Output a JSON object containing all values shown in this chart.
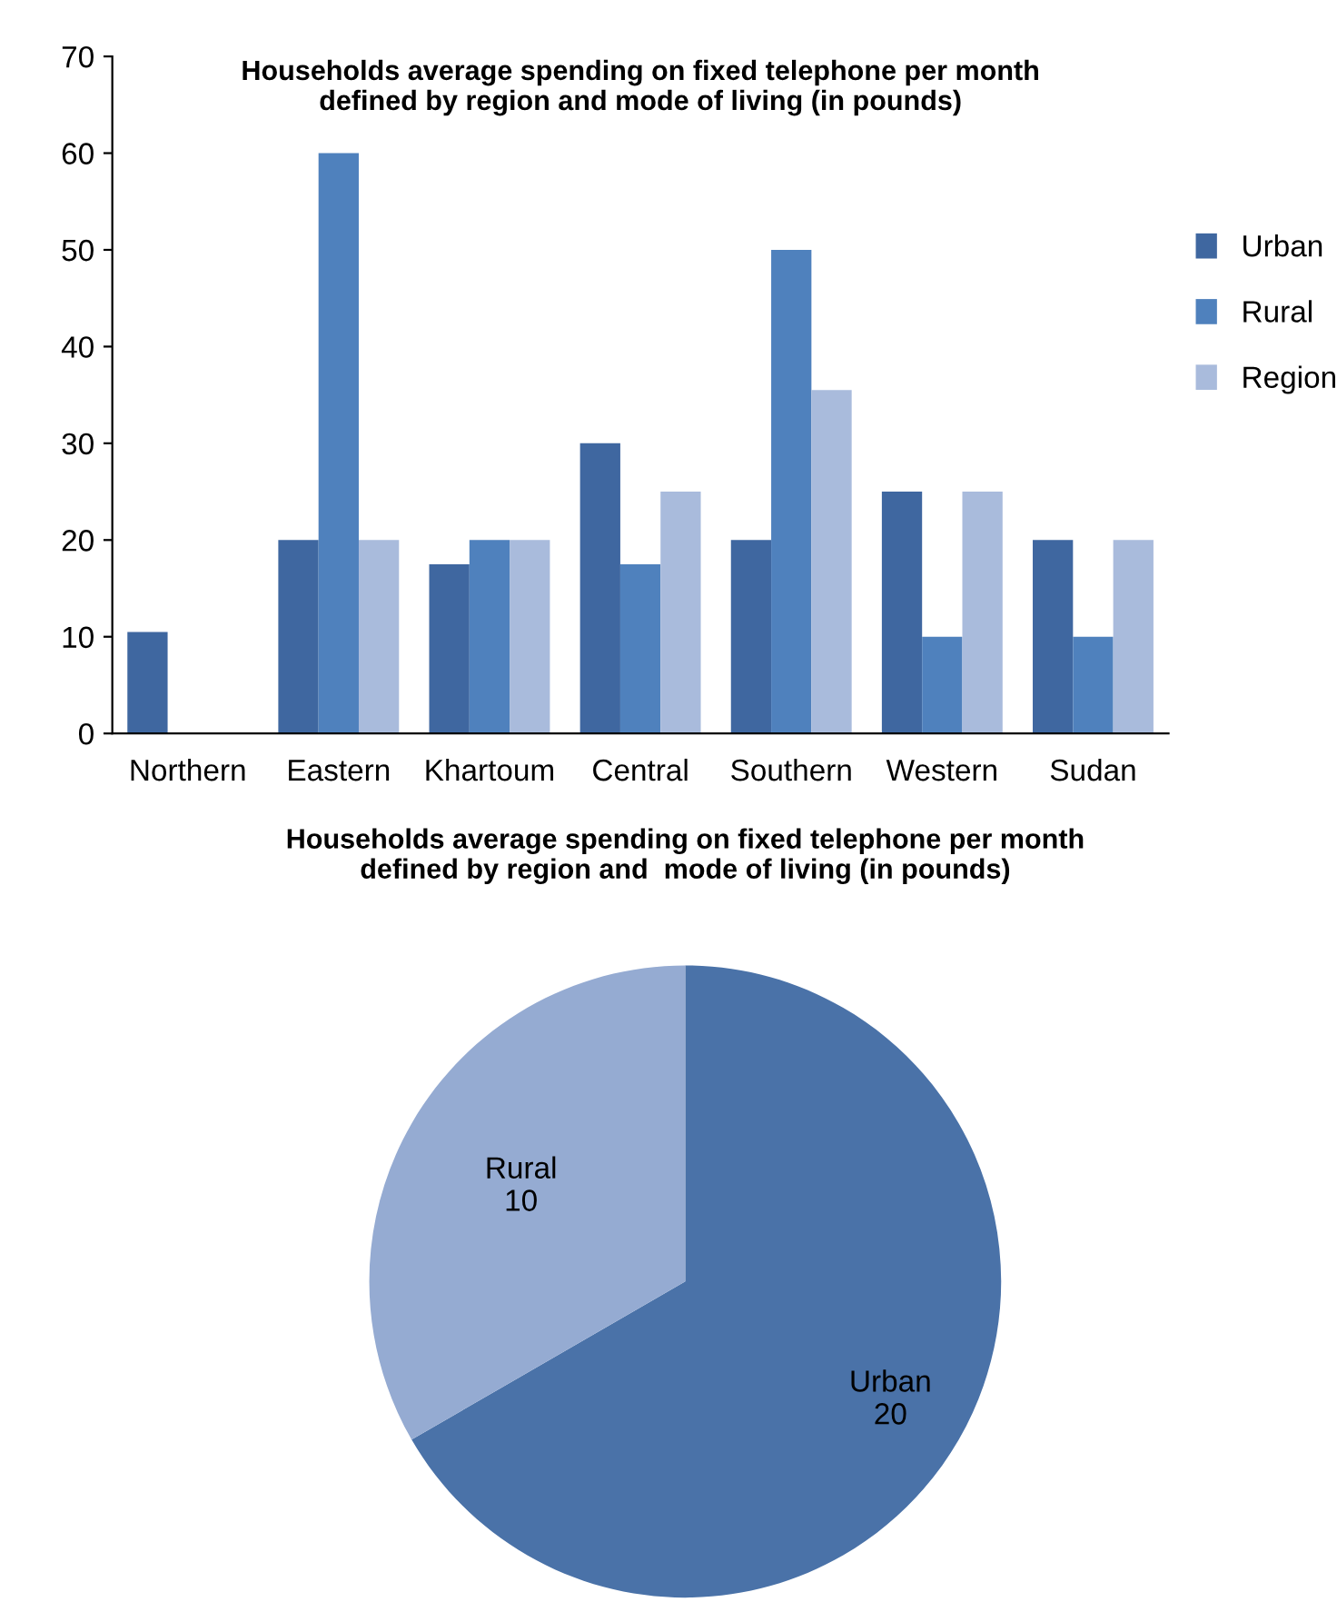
{
  "chart_data": [
    {
      "type": "bar",
      "title": "Households average spending on fixed telephone per month\ndefined by region and mode of living (in pounds)",
      "categories": [
        "Northern",
        "Eastern",
        "Khartoum",
        "Central",
        "Southern",
        "Western",
        "Sudan"
      ],
      "series": [
        {
          "name": "Urban",
          "color": "#3f67a0",
          "values": [
            10.5,
            20,
            17.5,
            30,
            20,
            25,
            20
          ]
        },
        {
          "name": "Rural",
          "color": "#4f81bd",
          "values": [
            null,
            60,
            20,
            17.5,
            50,
            10,
            10
          ]
        },
        {
          "name": "Region",
          "color": "#a9bbdc",
          "values": [
            null,
            20,
            20,
            25,
            35.5,
            25,
            20
          ]
        }
      ],
      "ylim": [
        0,
        70
      ],
      "yticks": [
        0,
        10,
        20,
        30,
        40,
        50,
        60,
        70
      ],
      "grid": false,
      "legend": "right"
    },
    {
      "type": "pie",
      "title": "Households average spending on fixed telephone per month\ndefined by region and  mode of living (in pounds)",
      "categories": [
        "Urban",
        "Rural"
      ],
      "values": [
        20,
        10
      ],
      "colors": [
        "#4a72a8",
        "#95abd2"
      ],
      "data_labels": true
    }
  ]
}
